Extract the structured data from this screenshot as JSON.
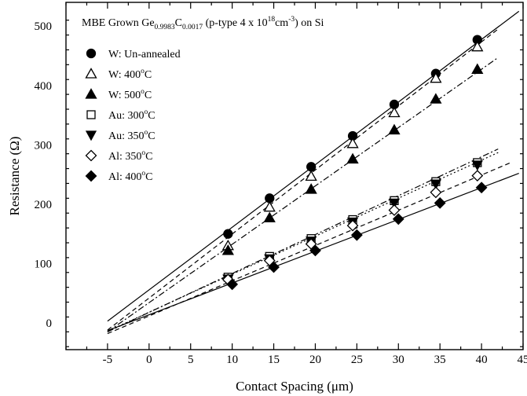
{
  "chart_data": {
    "type": "scatter",
    "title_parts": [
      "MBE Grown Ge",
      "0.9983",
      "C",
      "0.0017",
      " (p-type 4 x 10",
      "18",
      "cm",
      "-3",
      ") on Si"
    ],
    "xlabel": "Contact Spacing (μm)",
    "ylabel": "Resistance (Ω)",
    "xlim": [
      -10,
      45
    ],
    "ylim": [
      -45,
      540
    ],
    "xticks": [
      -5,
      0,
      5,
      10,
      15,
      20,
      25,
      30,
      35,
      40,
      45
    ],
    "yticks": [
      0,
      100,
      200,
      300,
      400,
      500
    ],
    "grid": false,
    "legend_position": "top-left",
    "series": [
      {
        "name": "W: Un-annealed",
        "label_base": "W: Un-annealed",
        "label_sup": "",
        "label_tail": "",
        "marker": "circle-filled",
        "line": "solid",
        "x": [
          9.5,
          14.5,
          19.5,
          24.5,
          29.5,
          34.5,
          39.5
        ],
        "y": [
          150,
          210,
          263,
          315,
          368,
          420,
          477
        ],
        "fit": [
          [
            -5,
            3
          ],
          [
            44.5,
            525
          ]
        ]
      },
      {
        "name": "W: 400°C",
        "label_base": "W: 400",
        "label_sup": "o",
        "label_tail": "C",
        "marker": "triangle-open",
        "line": "dashed",
        "x": [
          9.5,
          14.5,
          19.5,
          24.5,
          29.5,
          34.5,
          39.5
        ],
        "y": [
          130,
          195,
          247,
          302,
          354,
          412,
          465
        ],
        "fit": [
          [
            -5,
            -12
          ],
          [
            42,
            495
          ]
        ]
      },
      {
        "name": "W: 500°C",
        "label_base": "W: 500",
        "label_sup": "o",
        "label_tail": "C",
        "marker": "triangle-filled",
        "line": "dashdot",
        "x": [
          9.5,
          14.5,
          19.5,
          24.5,
          29.5,
          34.5,
          39.5
        ],
        "y": [
          122,
          177,
          225,
          276,
          325,
          377,
          427
        ],
        "fit": [
          [
            -5,
            -15
          ],
          [
            42,
            447
          ]
        ]
      },
      {
        "name": "Au: 300°C",
        "label_base": "Au: 300",
        "label_sup": "o",
        "label_tail": "C",
        "marker": "square-open",
        "line": "dashdot",
        "x": [
          9.5,
          14.5,
          19.5,
          24.5,
          29.5,
          34.5,
          39.5
        ],
        "y": [
          77,
          112,
          142,
          174,
          206,
          238,
          270
        ],
        "fit": [
          [
            -5,
            -15
          ],
          [
            42,
            293
          ]
        ]
      },
      {
        "name": "Au: 350°C",
        "label_base": "Au: 350",
        "label_sup": "o",
        "label_tail": "C",
        "marker": "triangle-down-filled",
        "line": "dotted",
        "x": [
          9.5,
          14.5,
          19.5,
          24.5,
          29.5,
          34.5,
          39.5
        ],
        "y": [
          74,
          108,
          138,
          170,
          202,
          234,
          266
        ],
        "fit": [
          [
            -5,
            -14
          ],
          [
            42,
            287
          ]
        ]
      },
      {
        "name": "Al: 350°C",
        "label_base": "Al: 350",
        "label_sup": "o",
        "label_tail": "C",
        "marker": "diamond-open",
        "line": "dashed",
        "x": [
          9.5,
          14.5,
          19.5,
          24.5,
          29.5,
          34.5,
          39.5
        ],
        "y": [
          73,
          105,
          133,
          164,
          190,
          220,
          248
        ],
        "fit": [
          [
            -5,
            -18
          ],
          [
            43.5,
            270
          ]
        ]
      },
      {
        "name": "Al: 400°C",
        "label_base": "Al: 400",
        "label_sup": "o",
        "label_tail": "C",
        "marker": "diamond-filled",
        "line": "solid",
        "x": [
          10,
          15,
          20,
          25,
          30,
          35,
          40
        ],
        "y": [
          65,
          94,
          122,
          148,
          175,
          202,
          228
        ],
        "fit": [
          [
            -5,
            -13
          ],
          [
            44.5,
            252
          ]
        ]
      }
    ]
  }
}
